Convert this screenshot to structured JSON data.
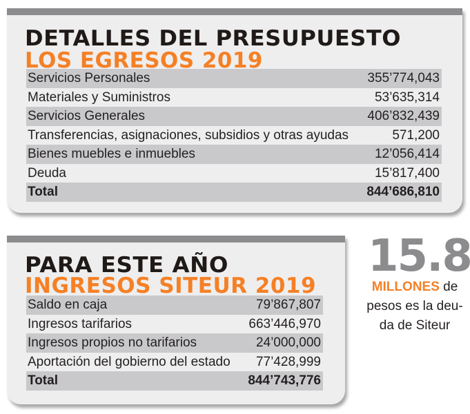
{
  "egresos": {
    "title": "DETALLES DEL PRESUPUESTO",
    "subtitle": "LOS EGRESOS 2019",
    "rows": [
      {
        "label": "Servicios Personales",
        "value": "355’774,043"
      },
      {
        "label": "Materiales y Suministros",
        "value": "53’635,314"
      },
      {
        "label": "Servicios Generales",
        "value": "406’832,439"
      },
      {
        "label": "Transferencias, asignaciones, subsidios y otras ayudas",
        "value": "571,200"
      },
      {
        "label": "Bienes muebles e inmuebles",
        "value": "12’056,414"
      },
      {
        "label": "Deuda",
        "value": "15’817,400"
      },
      {
        "label": "Total",
        "value": "844’686,810"
      }
    ]
  },
  "ingresos": {
    "title": "PARA ESTE AÑO",
    "subtitle": "INGRESOS SITEUR 2019",
    "rows": [
      {
        "label": "Saldo en caja",
        "value": "79’867,807"
      },
      {
        "label": "Ingresos tarifarios",
        "value": "663’446,970"
      },
      {
        "label": "Ingresos propios no tarifarios",
        "value": "24’000,000"
      },
      {
        "label": "Aportación del gobierno del estado",
        "value": "77’428,999"
      },
      {
        "label": "Total",
        "value": "844’743,776"
      }
    ]
  },
  "stat": {
    "number": "15.8",
    "unit": "MILLONES",
    "text_after_unit": " de",
    "line2": "pesos es la deu-",
    "line3": "da de Siteur"
  },
  "colors": {
    "accent": "#f58025",
    "bar": "#8c8c8e",
    "shade": "#c9c9cb",
    "card": "#eeeeef"
  }
}
